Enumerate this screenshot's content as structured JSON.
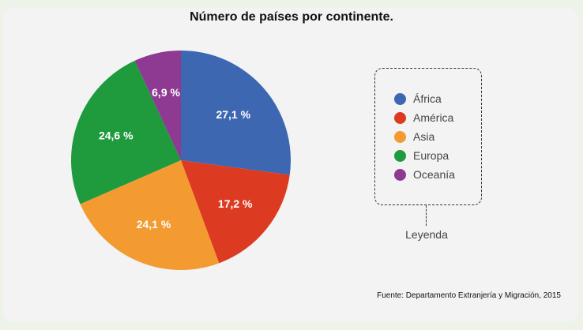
{
  "chart_data": {
    "type": "pie",
    "title": "Número de países por continente.",
    "categories": [
      "África",
      "América",
      "Asia",
      "Europa",
      "Oceanía"
    ],
    "values": [
      27.1,
      17.2,
      24.1,
      24.6,
      6.9
    ],
    "data_labels": [
      "27,1 %",
      "17,2 %",
      "24,1 %",
      "24,6 %",
      "6,9 %"
    ],
    "colors": [
      "#3d67b1",
      "#dc3b22",
      "#f39a31",
      "#1f9a3d",
      "#8e3a92"
    ],
    "legend_position": "right",
    "legend_caption": "Leyenda"
  },
  "source": "Fuente: Departamento Extranjería y Migración, 2015"
}
